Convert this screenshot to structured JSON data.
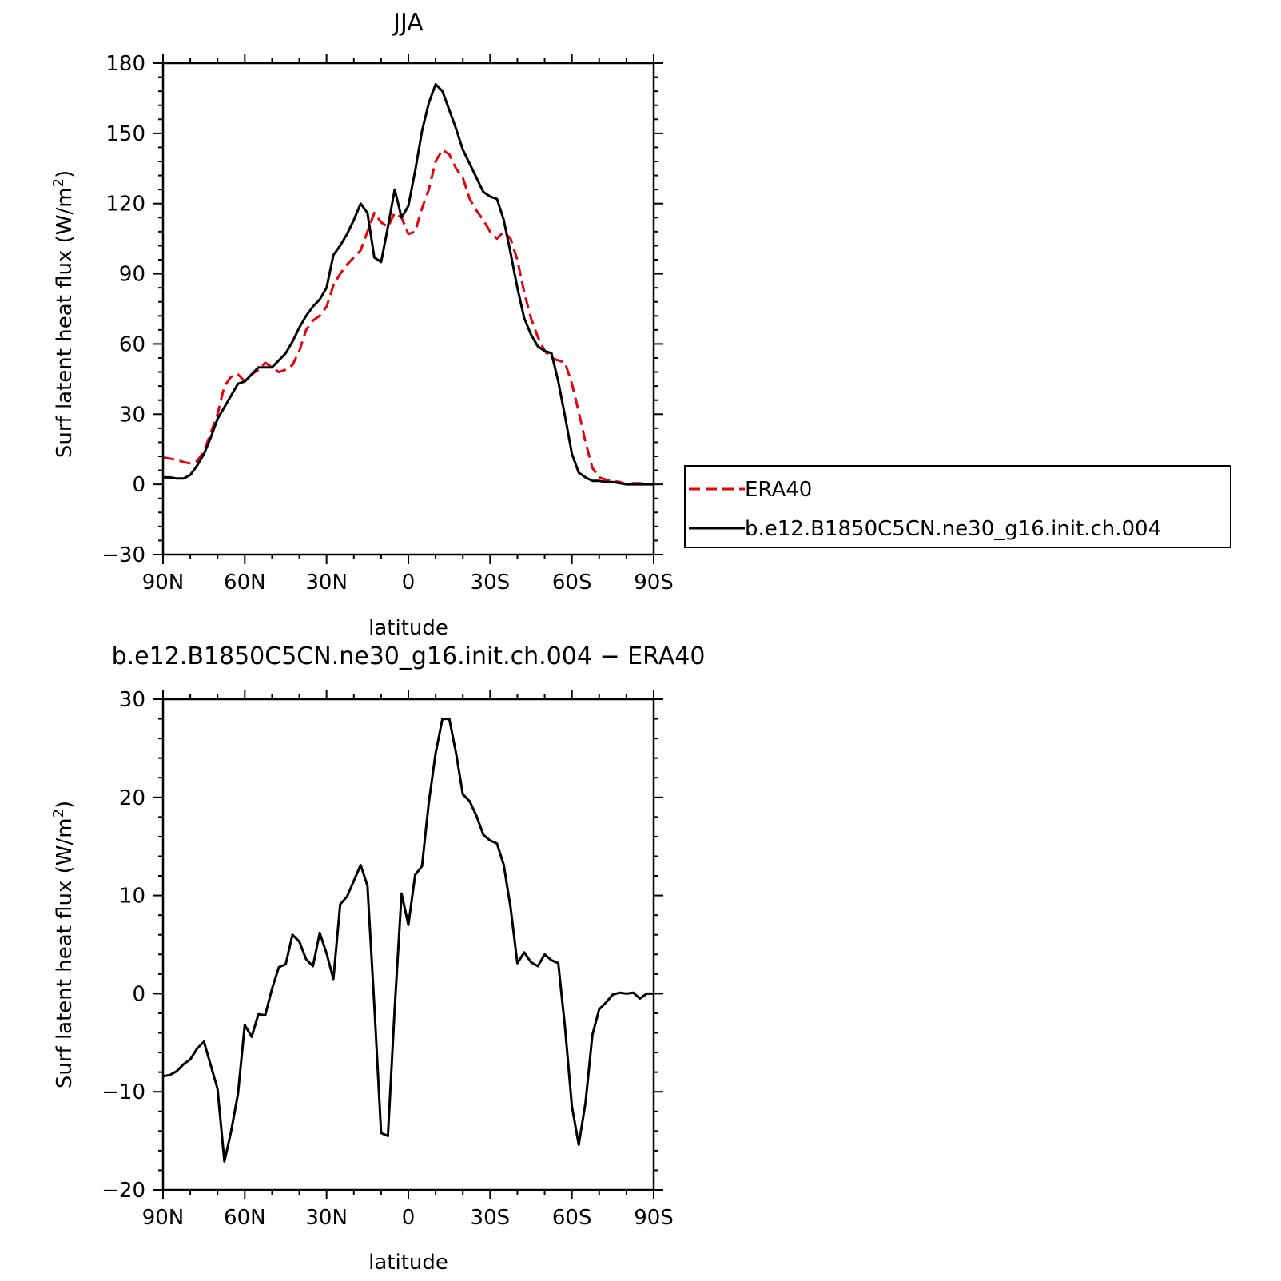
{
  "chart_data": [
    {
      "type": "line",
      "title": "JJA",
      "xlabel": "latitude",
      "ylabel": "Surf latent heat flux (W/m",
      "ylabel_sup": "2",
      "ylabel_close": ")",
      "xlim": [
        90,
        -90
      ],
      "ylim": [
        -30,
        180
      ],
      "xticks": [
        90,
        60,
        30,
        0,
        -30,
        -60,
        -90
      ],
      "xtick_labels": [
        "90N",
        "60N",
        "30N",
        "0",
        "30S",
        "60S",
        "90S"
      ],
      "yticks": [
        -30,
        0,
        30,
        60,
        90,
        120,
        150,
        180
      ],
      "ytick_labels": [
        "−30",
        "0",
        "30",
        "60",
        "90",
        "120",
        "150",
        "180"
      ],
      "legend": {
        "position": "right",
        "entries": [
          "ERA40",
          "b.e12.B1850C5CN.ne30_g16.init.ch.004"
        ]
      },
      "series": [
        {
          "name": "ERA40",
          "color": "#e8000b",
          "dash": "dashed",
          "x": [
            90,
            87.5,
            85,
            82.5,
            80,
            77.5,
            75,
            72.5,
            70,
            67.5,
            65,
            62.5,
            60,
            57.5,
            55,
            52.5,
            50,
            47.5,
            45,
            42.5,
            40,
            37.5,
            35,
            32.5,
            30,
            27.5,
            25,
            22.5,
            20,
            17.5,
            15,
            12.5,
            10,
            7.5,
            5,
            2.5,
            0,
            -2.5,
            -5,
            -7.5,
            -10,
            -12.5,
            -15,
            -17.5,
            -20,
            -22.5,
            -25,
            -27.5,
            -30,
            -32.5,
            -35,
            -37.5,
            -40,
            -42.5,
            -45,
            -47.5,
            -50,
            -52.5,
            -55,
            -57.5,
            -60,
            -62.5,
            -65,
            -67.5,
            -70,
            -72.5,
            -75,
            -77.5,
            -80,
            -82.5,
            -85,
            -87.5,
            -90
          ],
          "values": [
            11.5,
            11,
            10.5,
            9.5,
            9,
            10,
            14,
            22,
            30,
            42,
            46,
            47,
            44,
            47,
            49,
            52,
            50,
            48,
            49,
            51,
            57,
            66,
            70,
            72,
            76,
            85,
            90,
            94,
            97,
            100,
            108,
            116,
            112,
            110,
            116,
            114,
            107,
            108,
            118,
            126,
            138,
            143,
            141,
            135,
            131,
            122,
            117,
            113,
            108,
            105,
            108,
            105,
            96,
            82,
            71,
            63,
            57,
            54,
            53,
            52,
            43,
            31,
            18,
            7,
            3,
            2,
            1.5,
            1,
            0,
            0.5,
            0.5,
            0,
            0
          ]
        },
        {
          "name": "b.e12.B1850C5CN.ne30_g16.init.ch.004",
          "color": "#000000",
          "dash": "solid",
          "x": [
            90,
            87.5,
            85,
            82.5,
            80,
            77.5,
            75,
            72.5,
            70,
            67.5,
            65,
            62.5,
            60,
            57.5,
            55,
            52.5,
            50,
            47.5,
            45,
            42.5,
            40,
            37.5,
            35,
            32.5,
            30,
            27.5,
            25,
            22.5,
            20,
            17.5,
            15,
            12.5,
            10,
            7.5,
            5,
            2.5,
            0,
            -2.5,
            -5,
            -7.5,
            -10,
            -12.5,
            -15,
            -17.5,
            -20,
            -22.5,
            -25,
            -27.5,
            -30,
            -32.5,
            -35,
            -37.5,
            -40,
            -42.5,
            -45,
            -47.5,
            -50,
            -52.5,
            -55,
            -57.5,
            -60,
            -62.5,
            -65,
            -67.5,
            -70,
            -72.5,
            -75,
            -77.5,
            -80,
            -82.5,
            -85,
            -87.5,
            -90
          ],
          "values": [
            3,
            3,
            2.5,
            2.5,
            4,
            8,
            13,
            20,
            28,
            33,
            38,
            43,
            44,
            47,
            50,
            50,
            50,
            53,
            56,
            61,
            67,
            72,
            76,
            79,
            84,
            98,
            102,
            107,
            113,
            120,
            116,
            97,
            95,
            110,
            126,
            114,
            119,
            134,
            151,
            163,
            171,
            168,
            160,
            152,
            143,
            137,
            131,
            125,
            123,
            122,
            113,
            99,
            84,
            71,
            64,
            59,
            57,
            56,
            44,
            29,
            13,
            5,
            3,
            1.5,
            1.5,
            1,
            1,
            0.5,
            0,
            0,
            0,
            0,
            0
          ]
        }
      ]
    },
    {
      "type": "line",
      "title": "b.e12.B1850C5CN.ne30_g16.init.ch.004 − ERA40",
      "xlabel": "latitude",
      "ylabel": "Surf latent heat flux (W/m",
      "ylabel_sup": "2",
      "ylabel_close": ")",
      "xlim": [
        90,
        -90
      ],
      "ylim": [
        -20,
        30
      ],
      "xticks": [
        90,
        60,
        30,
        0,
        -30,
        -60,
        -90
      ],
      "xtick_labels": [
        "90N",
        "60N",
        "30N",
        "0",
        "30S",
        "60S",
        "90S"
      ],
      "yticks": [
        -20,
        -10,
        0,
        10,
        20,
        30
      ],
      "ytick_labels": [
        "−20",
        "−10",
        "0",
        "10",
        "20",
        "30"
      ],
      "series": [
        {
          "color": "#000000",
          "dash": "solid",
          "x": [
            90,
            87.5,
            85,
            82.5,
            80,
            77.5,
            75,
            72.5,
            70,
            67.5,
            65,
            62.5,
            60,
            57.5,
            55,
            52.5,
            50,
            47.5,
            45,
            42.5,
            40,
            37.5,
            35,
            32.5,
            30,
            27.5,
            25,
            22.5,
            20,
            17.5,
            15,
            12.5,
            10,
            7.5,
            5,
            2.5,
            0,
            -2.5,
            -5,
            -7.5,
            -10,
            -12.5,
            -15,
            -17.5,
            -20,
            -22.5,
            -25,
            -27.5,
            -30,
            -32.5,
            -35,
            -37.5,
            -40,
            -42.5,
            -45,
            -47.5,
            -50,
            -52.5,
            -55,
            -57.5,
            -60,
            -62.5,
            -65,
            -67.5,
            -70,
            -72.5,
            -75,
            -77.5,
            -80,
            -82.5,
            -85,
            -87.5,
            -90
          ],
          "values": [
            -8.4,
            -8.3,
            -7.9,
            -7.2,
            -6.7,
            -5.6,
            -4.9,
            -7.3,
            -9.7,
            -17.1,
            -14,
            -10.2,
            -3.2,
            -4.4,
            -2.1,
            -2.2,
            0.5,
            2.7,
            3,
            6,
            5.3,
            3.5,
            2.8,
            6.2,
            4.1,
            1.5,
            9.1,
            9.9,
            11.5,
            13.1,
            11,
            -1.2,
            -14.2,
            -14.5,
            -1.5,
            10.2,
            7,
            12.1,
            13,
            19.5,
            24.5,
            28,
            28,
            24.5,
            20.3,
            19.6,
            18.1,
            16.2,
            15.6,
            15.3,
            13.1,
            8.8,
            3.1,
            4.2,
            3.2,
            2.8,
            4,
            3.4,
            3.1,
            -3.5,
            -11.5,
            -15.4,
            -11.1,
            -4.2,
            -1.6,
            -0.9,
            -0.1,
            0.1,
            0,
            0.1,
            -0.5,
            0,
            0
          ]
        }
      ]
    }
  ]
}
